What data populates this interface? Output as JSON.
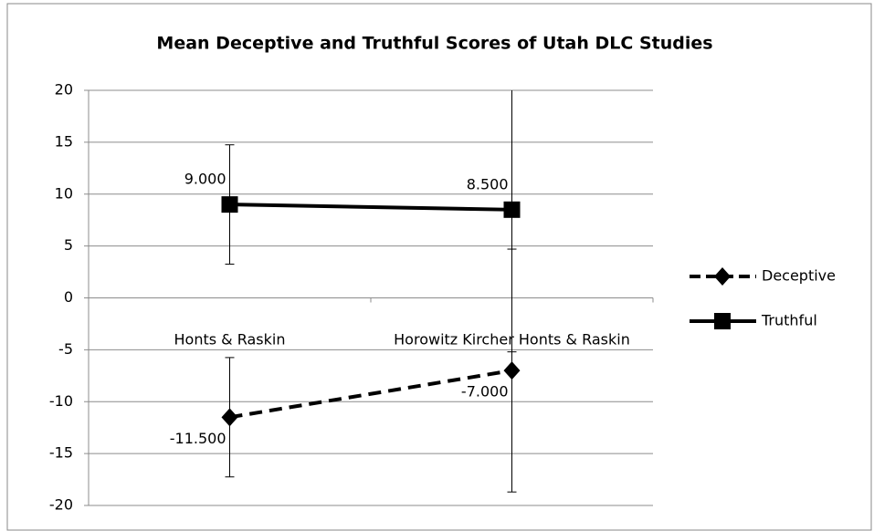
{
  "chart_data": {
    "type": "line",
    "title": "Mean Deceptive and Truthful Scores of Utah DLC Studies",
    "categories": [
      "Honts & Raskin",
      "Horowitz Kircher Honts & Raskin"
    ],
    "series": [
      {
        "name": "Deceptive",
        "color": "#000000",
        "dash": true,
        "marker": "diamond",
        "values": [
          -11.5,
          -7.0
        ],
        "value_labels": [
          "-11.500",
          "-7.000"
        ],
        "errors": [
          5.75,
          11.7
        ]
      },
      {
        "name": "Truthful",
        "color": "#000000",
        "dash": false,
        "marker": "square",
        "values": [
          9.0,
          8.5
        ],
        "value_labels": [
          "9.000",
          "8.500"
        ],
        "errors": [
          5.75,
          13.7
        ]
      }
    ],
    "ylim": [
      -20,
      20
    ],
    "yticks": [
      -20,
      -15,
      -10,
      -5,
      0,
      5,
      10,
      15,
      20
    ],
    "grid": true,
    "legend": "right"
  }
}
